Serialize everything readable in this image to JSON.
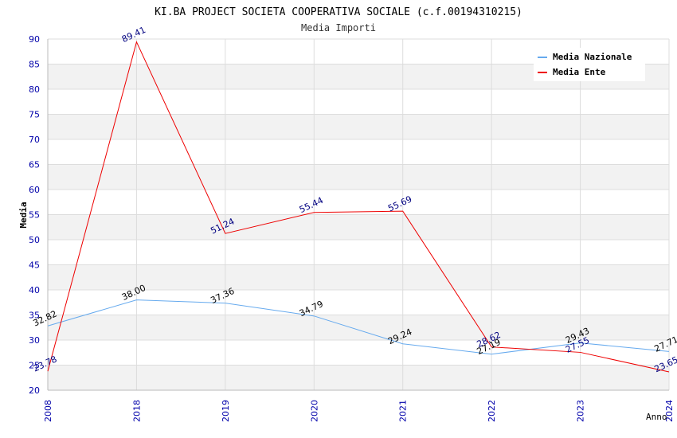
{
  "chart_data": {
    "type": "line",
    "title": "KI.BA PROJECT SOCIETA COOPERATIVA SOCIALE (c.f.00194310215)",
    "subtitle": "Media Importi",
    "xlabel": "Anno",
    "ylabel": "Media",
    "categories": [
      "2008",
      "2018",
      "2019",
      "2020",
      "2021",
      "2022",
      "2023",
      "2024"
    ],
    "ylim": [
      20,
      90
    ],
    "yticks": [
      20,
      25,
      30,
      35,
      40,
      45,
      50,
      55,
      60,
      65,
      70,
      75,
      80,
      85,
      90
    ],
    "legend_position": "top-right",
    "series": [
      {
        "name": "Media Nazionale",
        "color": "#66aaee",
        "label_color": "#000000",
        "values": [
          32.82,
          38.0,
          37.36,
          34.79,
          29.24,
          27.19,
          29.43,
          27.71
        ],
        "labels": [
          "32.82",
          "38.00",
          "37.36",
          "34.79",
          "29.24",
          "27.19",
          "29.43",
          "27.71"
        ]
      },
      {
        "name": "Media Ente",
        "color": "#ee0000",
        "label_color": "#000080",
        "values": [
          23.78,
          89.41,
          51.24,
          55.44,
          55.69,
          28.62,
          27.55,
          23.65
        ],
        "labels": [
          "23.78",
          "89.41",
          "51.24",
          "55.44",
          "55.69",
          "28.62",
          "27.55",
          "23.65"
        ]
      }
    ]
  }
}
